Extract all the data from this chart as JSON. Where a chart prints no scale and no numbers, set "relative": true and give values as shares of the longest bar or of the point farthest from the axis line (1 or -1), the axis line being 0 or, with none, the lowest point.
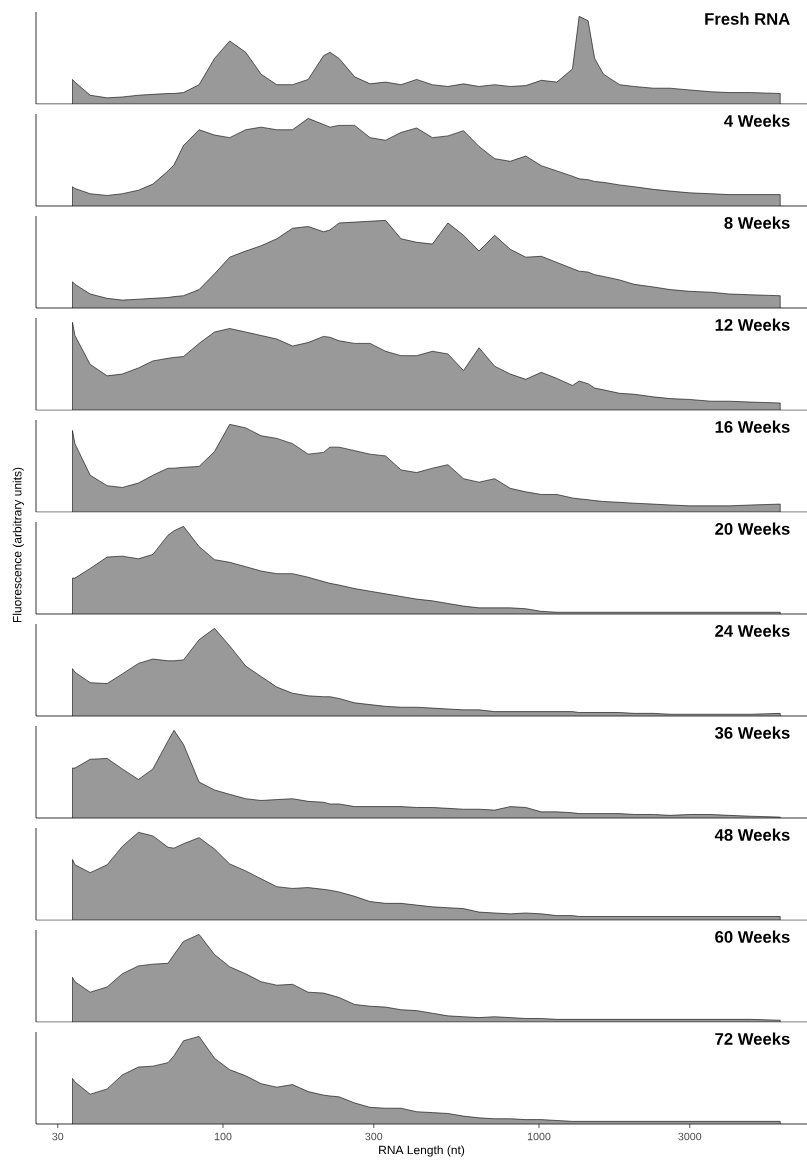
{
  "chart_data": [
    {
      "type": "area",
      "title": "Fresh RNA",
      "relative": true,
      "log": "x",
      "xlim": [
        25.6,
        7050
      ],
      "xticks": [
        30,
        100,
        300,
        1000,
        3000
      ],
      "tick_labels": false,
      "color": "#999999",
      "x": [
        33.4,
        34,
        38,
        43,
        48,
        54,
        60,
        67,
        70,
        75,
        84,
        94,
        105,
        118,
        132,
        148,
        166,
        186,
        208,
        218,
        233,
        261,
        292,
        327,
        366,
        410,
        460,
        515,
        577,
        646,
        724,
        811,
        908,
        1017,
        1139,
        1276,
        1340,
        1430,
        1500,
        1600,
        1800,
        2000,
        2300,
        2600,
        3000,
        3500,
        4000,
        4700,
        5800
      ],
      "values": [
        0.28,
        0.25,
        0.1,
        0.07,
        0.08,
        0.1,
        0.11,
        0.12,
        0.12,
        0.13,
        0.22,
        0.52,
        0.72,
        0.59,
        0.34,
        0.22,
        0.22,
        0.28,
        0.55,
        0.59,
        0.52,
        0.31,
        0.23,
        0.25,
        0.22,
        0.28,
        0.22,
        0.2,
        0.23,
        0.2,
        0.22,
        0.2,
        0.21,
        0.27,
        0.25,
        0.4,
        1.0,
        0.95,
        0.52,
        0.34,
        0.22,
        0.2,
        0.18,
        0.18,
        0.16,
        0.14,
        0.13,
        0.13,
        0.12
      ]
    },
    {
      "type": "area",
      "title": "4 Weeks",
      "relative": true,
      "log": "x",
      "xlim": [
        25.6,
        7050
      ],
      "xticks": [
        30,
        100,
        300,
        1000,
        3000
      ],
      "tick_labels": false,
      "color": "#999999",
      "x": [
        33.4,
        34,
        38,
        43,
        48,
        54,
        60,
        67,
        70,
        75,
        84,
        94,
        105,
        118,
        132,
        148,
        166,
        186,
        208,
        218,
        233,
        261,
        292,
        327,
        366,
        410,
        460,
        515,
        577,
        646,
        724,
        811,
        908,
        1017,
        1139,
        1276,
        1340,
        1430,
        1500,
        1600,
        1800,
        2000,
        2300,
        2600,
        3000,
        3500,
        4000,
        4700,
        5800
      ],
      "values": [
        0.22,
        0.2,
        0.14,
        0.12,
        0.14,
        0.18,
        0.25,
        0.4,
        0.47,
        0.69,
        0.87,
        0.81,
        0.78,
        0.87,
        0.9,
        0.87,
        0.87,
        1.0,
        0.93,
        0.9,
        0.92,
        0.92,
        0.78,
        0.75,
        0.84,
        0.89,
        0.78,
        0.8,
        0.86,
        0.68,
        0.54,
        0.51,
        0.57,
        0.46,
        0.4,
        0.34,
        0.31,
        0.3,
        0.28,
        0.27,
        0.24,
        0.22,
        0.19,
        0.17,
        0.15,
        0.14,
        0.13,
        0.13,
        0.13
      ]
    },
    {
      "type": "area",
      "title": "8 Weeks",
      "relative": true,
      "log": "x",
      "xlim": [
        25.6,
        7050
      ],
      "xticks": [
        30,
        100,
        300,
        1000,
        3000
      ],
      "tick_labels": false,
      "color": "#999999",
      "x": [
        33.4,
        34,
        38,
        43,
        48,
        54,
        60,
        67,
        70,
        75,
        84,
        94,
        105,
        118,
        132,
        148,
        166,
        186,
        208,
        218,
        233,
        261,
        292,
        327,
        366,
        410,
        460,
        515,
        577,
        646,
        724,
        811,
        908,
        1017,
        1139,
        1276,
        1340,
        1430,
        1500,
        1600,
        1800,
        2000,
        2300,
        2600,
        3000,
        3500,
        4000,
        4700,
        5800
      ],
      "values": [
        0.3,
        0.27,
        0.16,
        0.11,
        0.09,
        0.1,
        0.11,
        0.12,
        0.13,
        0.14,
        0.21,
        0.39,
        0.58,
        0.65,
        0.71,
        0.79,
        0.91,
        0.93,
        0.87,
        0.89,
        0.97,
        0.98,
        0.99,
        1.0,
        0.79,
        0.75,
        0.73,
        0.97,
        0.83,
        0.65,
        0.83,
        0.67,
        0.58,
        0.59,
        0.52,
        0.45,
        0.42,
        0.41,
        0.38,
        0.36,
        0.32,
        0.27,
        0.24,
        0.21,
        0.19,
        0.18,
        0.16,
        0.15,
        0.14
      ]
    },
    {
      "type": "area",
      "title": "12 Weeks",
      "relative": true,
      "log": "x",
      "xlim": [
        25.6,
        7050
      ],
      "xticks": [
        30,
        100,
        300,
        1000,
        3000
      ],
      "tick_labels": false,
      "color": "#999999",
      "x": [
        33.4,
        34,
        38,
        43,
        48,
        54,
        60,
        67,
        70,
        75,
        84,
        94,
        105,
        118,
        132,
        148,
        166,
        186,
        208,
        218,
        233,
        261,
        292,
        327,
        366,
        410,
        460,
        515,
        577,
        646,
        724,
        811,
        908,
        1017,
        1139,
        1276,
        1340,
        1430,
        1500,
        1600,
        1800,
        2000,
        2300,
        2600,
        3000,
        3500,
        4000,
        4700,
        5800
      ],
      "values": [
        1.0,
        0.85,
        0.52,
        0.39,
        0.41,
        0.48,
        0.56,
        0.59,
        0.6,
        0.61,
        0.76,
        0.89,
        0.93,
        0.89,
        0.85,
        0.81,
        0.73,
        0.77,
        0.84,
        0.83,
        0.79,
        0.76,
        0.76,
        0.67,
        0.62,
        0.62,
        0.67,
        0.64,
        0.45,
        0.71,
        0.5,
        0.41,
        0.35,
        0.43,
        0.36,
        0.28,
        0.33,
        0.3,
        0.25,
        0.23,
        0.19,
        0.18,
        0.15,
        0.13,
        0.12,
        0.1,
        0.1,
        0.09,
        0.08
      ]
    },
    {
      "type": "area",
      "title": "16 Weeks",
      "relative": true,
      "log": "x",
      "xlim": [
        25.6,
        7050
      ],
      "xticks": [
        30,
        100,
        300,
        1000,
        3000
      ],
      "tick_labels": false,
      "color": "#999999",
      "x": [
        33.4,
        34,
        38,
        43,
        48,
        54,
        60,
        67,
        70,
        75,
        84,
        94,
        105,
        118,
        132,
        148,
        166,
        186,
        208,
        218,
        233,
        261,
        292,
        327,
        366,
        410,
        460,
        515,
        577,
        646,
        724,
        811,
        908,
        1017,
        1139,
        1276,
        1340,
        1430,
        1500,
        1600,
        1800,
        2000,
        2300,
        2600,
        3000,
        3500,
        4000,
        4700,
        5800
      ],
      "values": [
        0.93,
        0.78,
        0.42,
        0.3,
        0.28,
        0.33,
        0.42,
        0.5,
        0.5,
        0.51,
        0.52,
        0.69,
        1.0,
        0.96,
        0.87,
        0.84,
        0.78,
        0.66,
        0.68,
        0.74,
        0.74,
        0.7,
        0.66,
        0.64,
        0.48,
        0.45,
        0.5,
        0.54,
        0.38,
        0.34,
        0.38,
        0.27,
        0.23,
        0.2,
        0.2,
        0.16,
        0.15,
        0.14,
        0.13,
        0.12,
        0.11,
        0.1,
        0.09,
        0.08,
        0.07,
        0.07,
        0.07,
        0.08,
        0.09
      ]
    },
    {
      "type": "area",
      "title": "20 Weeks",
      "ylabel": "Fluorescence (arbitrary units)",
      "relative": true,
      "log": "x",
      "xlim": [
        25.6,
        7050
      ],
      "xticks": [
        30,
        100,
        300,
        1000,
        3000
      ],
      "tick_labels": false,
      "color": "#999999",
      "x": [
        33.4,
        34,
        38,
        43,
        48,
        54,
        60,
        67,
        70,
        75,
        84,
        94,
        105,
        118,
        132,
        148,
        166,
        186,
        208,
        218,
        233,
        261,
        292,
        327,
        366,
        410,
        460,
        515,
        577,
        646,
        724,
        811,
        908,
        1017,
        1139,
        1276,
        1340,
        1430,
        1500,
        1600,
        1800,
        2000,
        2300,
        2600,
        3000,
        3500,
        4000,
        4700,
        5800
      ],
      "values": [
        0.41,
        0.41,
        0.52,
        0.65,
        0.66,
        0.63,
        0.68,
        0.9,
        0.95,
        1.0,
        0.77,
        0.62,
        0.59,
        0.54,
        0.49,
        0.46,
        0.46,
        0.42,
        0.37,
        0.35,
        0.33,
        0.29,
        0.26,
        0.23,
        0.2,
        0.17,
        0.15,
        0.12,
        0.09,
        0.07,
        0.07,
        0.07,
        0.06,
        0.03,
        0.02,
        0.02,
        0.02,
        0.02,
        0.02,
        0.02,
        0.02,
        0.02,
        0.02,
        0.02,
        0.02,
        0.02,
        0.02,
        0.02,
        0.02
      ]
    },
    {
      "type": "area",
      "title": "24 Weeks",
      "relative": true,
      "log": "x",
      "xlim": [
        25.6,
        7050
      ],
      "xticks": [
        30,
        100,
        300,
        1000,
        3000
      ],
      "tick_labels": false,
      "color": "#999999",
      "x": [
        33.4,
        34,
        38,
        43,
        48,
        54,
        60,
        67,
        70,
        75,
        84,
        94,
        105,
        118,
        132,
        148,
        166,
        186,
        208,
        218,
        233,
        261,
        292,
        327,
        366,
        410,
        460,
        515,
        577,
        646,
        724,
        811,
        908,
        1017,
        1139,
        1276,
        1340,
        1430,
        1500,
        1600,
        1800,
        2000,
        2300,
        2600,
        3000,
        3500,
        4000,
        4700,
        5800
      ],
      "values": [
        0.54,
        0.5,
        0.38,
        0.37,
        0.48,
        0.6,
        0.65,
        0.63,
        0.63,
        0.64,
        0.87,
        1.0,
        0.8,
        0.57,
        0.45,
        0.33,
        0.26,
        0.23,
        0.22,
        0.22,
        0.2,
        0.15,
        0.13,
        0.11,
        0.1,
        0.1,
        0.09,
        0.08,
        0.07,
        0.07,
        0.05,
        0.05,
        0.05,
        0.05,
        0.05,
        0.05,
        0.04,
        0.04,
        0.04,
        0.04,
        0.04,
        0.03,
        0.03,
        0.02,
        0.02,
        0.02,
        0.02,
        0.02,
        0.03
      ]
    },
    {
      "type": "area",
      "title": "36 Weeks",
      "relative": true,
      "log": "x",
      "xlim": [
        25.6,
        7050
      ],
      "xticks": [
        30,
        100,
        300,
        1000,
        3000
      ],
      "tick_labels": false,
      "color": "#999999",
      "x": [
        33.4,
        34,
        38,
        43,
        48,
        54,
        60,
        67,
        70,
        75,
        84,
        94,
        105,
        118,
        132,
        148,
        166,
        186,
        208,
        218,
        233,
        261,
        292,
        327,
        366,
        410,
        460,
        515,
        577,
        646,
        724,
        811,
        908,
        1017,
        1139,
        1276,
        1340,
        1430,
        1500,
        1600,
        1800,
        2000,
        2300,
        2600,
        3000,
        3500,
        4000,
        4700,
        5800
      ],
      "values": [
        0.57,
        0.57,
        0.67,
        0.68,
        0.56,
        0.44,
        0.56,
        0.88,
        1.0,
        0.84,
        0.41,
        0.32,
        0.27,
        0.22,
        0.2,
        0.21,
        0.22,
        0.19,
        0.18,
        0.16,
        0.16,
        0.13,
        0.13,
        0.13,
        0.13,
        0.12,
        0.12,
        0.11,
        0.1,
        0.1,
        0.09,
        0.13,
        0.12,
        0.07,
        0.07,
        0.06,
        0.05,
        0.05,
        0.05,
        0.05,
        0.05,
        0.04,
        0.04,
        0.03,
        0.04,
        0.04,
        0.03,
        0.02,
        0.01
      ]
    },
    {
      "type": "area",
      "title": "48 Weeks",
      "relative": true,
      "log": "x",
      "xlim": [
        25.6,
        7050
      ],
      "xticks": [
        30,
        100,
        300,
        1000,
        3000
      ],
      "tick_labels": false,
      "color": "#999999",
      "x": [
        33.4,
        34,
        38,
        43,
        48,
        54,
        60,
        67,
        70,
        75,
        84,
        94,
        105,
        118,
        132,
        148,
        166,
        186,
        208,
        218,
        233,
        261,
        292,
        327,
        366,
        410,
        460,
        515,
        577,
        646,
        724,
        811,
        908,
        1017,
        1139,
        1276,
        1340,
        1430,
        1500,
        1600,
        1800,
        2000,
        2300,
        2600,
        3000,
        3500,
        4000,
        4700,
        5800
      ],
      "values": [
        0.69,
        0.63,
        0.54,
        0.63,
        0.84,
        1.0,
        0.96,
        0.83,
        0.82,
        0.87,
        0.94,
        0.81,
        0.64,
        0.56,
        0.47,
        0.38,
        0.36,
        0.37,
        0.35,
        0.34,
        0.32,
        0.27,
        0.21,
        0.19,
        0.19,
        0.17,
        0.15,
        0.14,
        0.13,
        0.09,
        0.08,
        0.07,
        0.08,
        0.07,
        0.05,
        0.05,
        0.04,
        0.04,
        0.04,
        0.04,
        0.04,
        0.04,
        0.04,
        0.04,
        0.04,
        0.04,
        0.04,
        0.04,
        0.04
      ]
    },
    {
      "type": "area",
      "title": "60 Weeks",
      "relative": true,
      "log": "x",
      "xlim": [
        25.6,
        7050
      ],
      "xticks": [
        30,
        100,
        300,
        1000,
        3000
      ],
      "tick_labels": false,
      "color": "#999999",
      "x": [
        33.4,
        34,
        38,
        43,
        48,
        54,
        60,
        67,
        70,
        75,
        84,
        94,
        105,
        118,
        132,
        148,
        166,
        186,
        208,
        218,
        233,
        261,
        292,
        327,
        366,
        410,
        460,
        515,
        577,
        646,
        724,
        811,
        908,
        1017,
        1139,
        1276,
        1340,
        1430,
        1500,
        1600,
        1800,
        2000,
        2300,
        2600,
        3000,
        3500,
        4000,
        4700,
        5800
      ],
      "values": [
        0.51,
        0.46,
        0.34,
        0.4,
        0.55,
        0.64,
        0.66,
        0.67,
        0.77,
        0.92,
        1.0,
        0.77,
        0.63,
        0.55,
        0.46,
        0.42,
        0.43,
        0.34,
        0.33,
        0.31,
        0.28,
        0.2,
        0.18,
        0.17,
        0.14,
        0.13,
        0.1,
        0.07,
        0.06,
        0.05,
        0.06,
        0.05,
        0.04,
        0.04,
        0.03,
        0.03,
        0.03,
        0.03,
        0.03,
        0.03,
        0.03,
        0.03,
        0.03,
        0.03,
        0.03,
        0.03,
        0.03,
        0.03,
        0.02
      ]
    },
    {
      "type": "area",
      "title": "72 Weeks",
      "xlabel": "RNA Length (nt)",
      "relative": true,
      "log": "x",
      "xlim": [
        25.6,
        7050
      ],
      "xticks": [
        30,
        100,
        300,
        1000,
        3000
      ],
      "tick_labels": "x",
      "color": "#999999",
      "x": [
        33.4,
        34,
        38,
        43,
        48,
        54,
        60,
        67,
        70,
        75,
        84,
        94,
        105,
        118,
        132,
        148,
        166,
        186,
        208,
        218,
        233,
        261,
        292,
        327,
        366,
        410,
        460,
        515,
        577,
        646,
        724,
        811,
        908,
        1017,
        1139,
        1276,
        1340,
        1430,
        1500,
        1600,
        1800,
        2000,
        2300,
        2600,
        3000,
        3500,
        4000,
        4700,
        5800
      ],
      "values": [
        0.52,
        0.48,
        0.34,
        0.4,
        0.56,
        0.65,
        0.66,
        0.7,
        0.78,
        0.95,
        1.0,
        0.75,
        0.62,
        0.55,
        0.46,
        0.42,
        0.45,
        0.37,
        0.33,
        0.32,
        0.31,
        0.24,
        0.19,
        0.18,
        0.18,
        0.14,
        0.13,
        0.12,
        0.09,
        0.07,
        0.06,
        0.06,
        0.05,
        0.05,
        0.04,
        0.03,
        0.03,
        0.03,
        0.03,
        0.03,
        0.03,
        0.03,
        0.03,
        0.03,
        0.03,
        0.03,
        0.03,
        0.03,
        0.03
      ]
    }
  ]
}
